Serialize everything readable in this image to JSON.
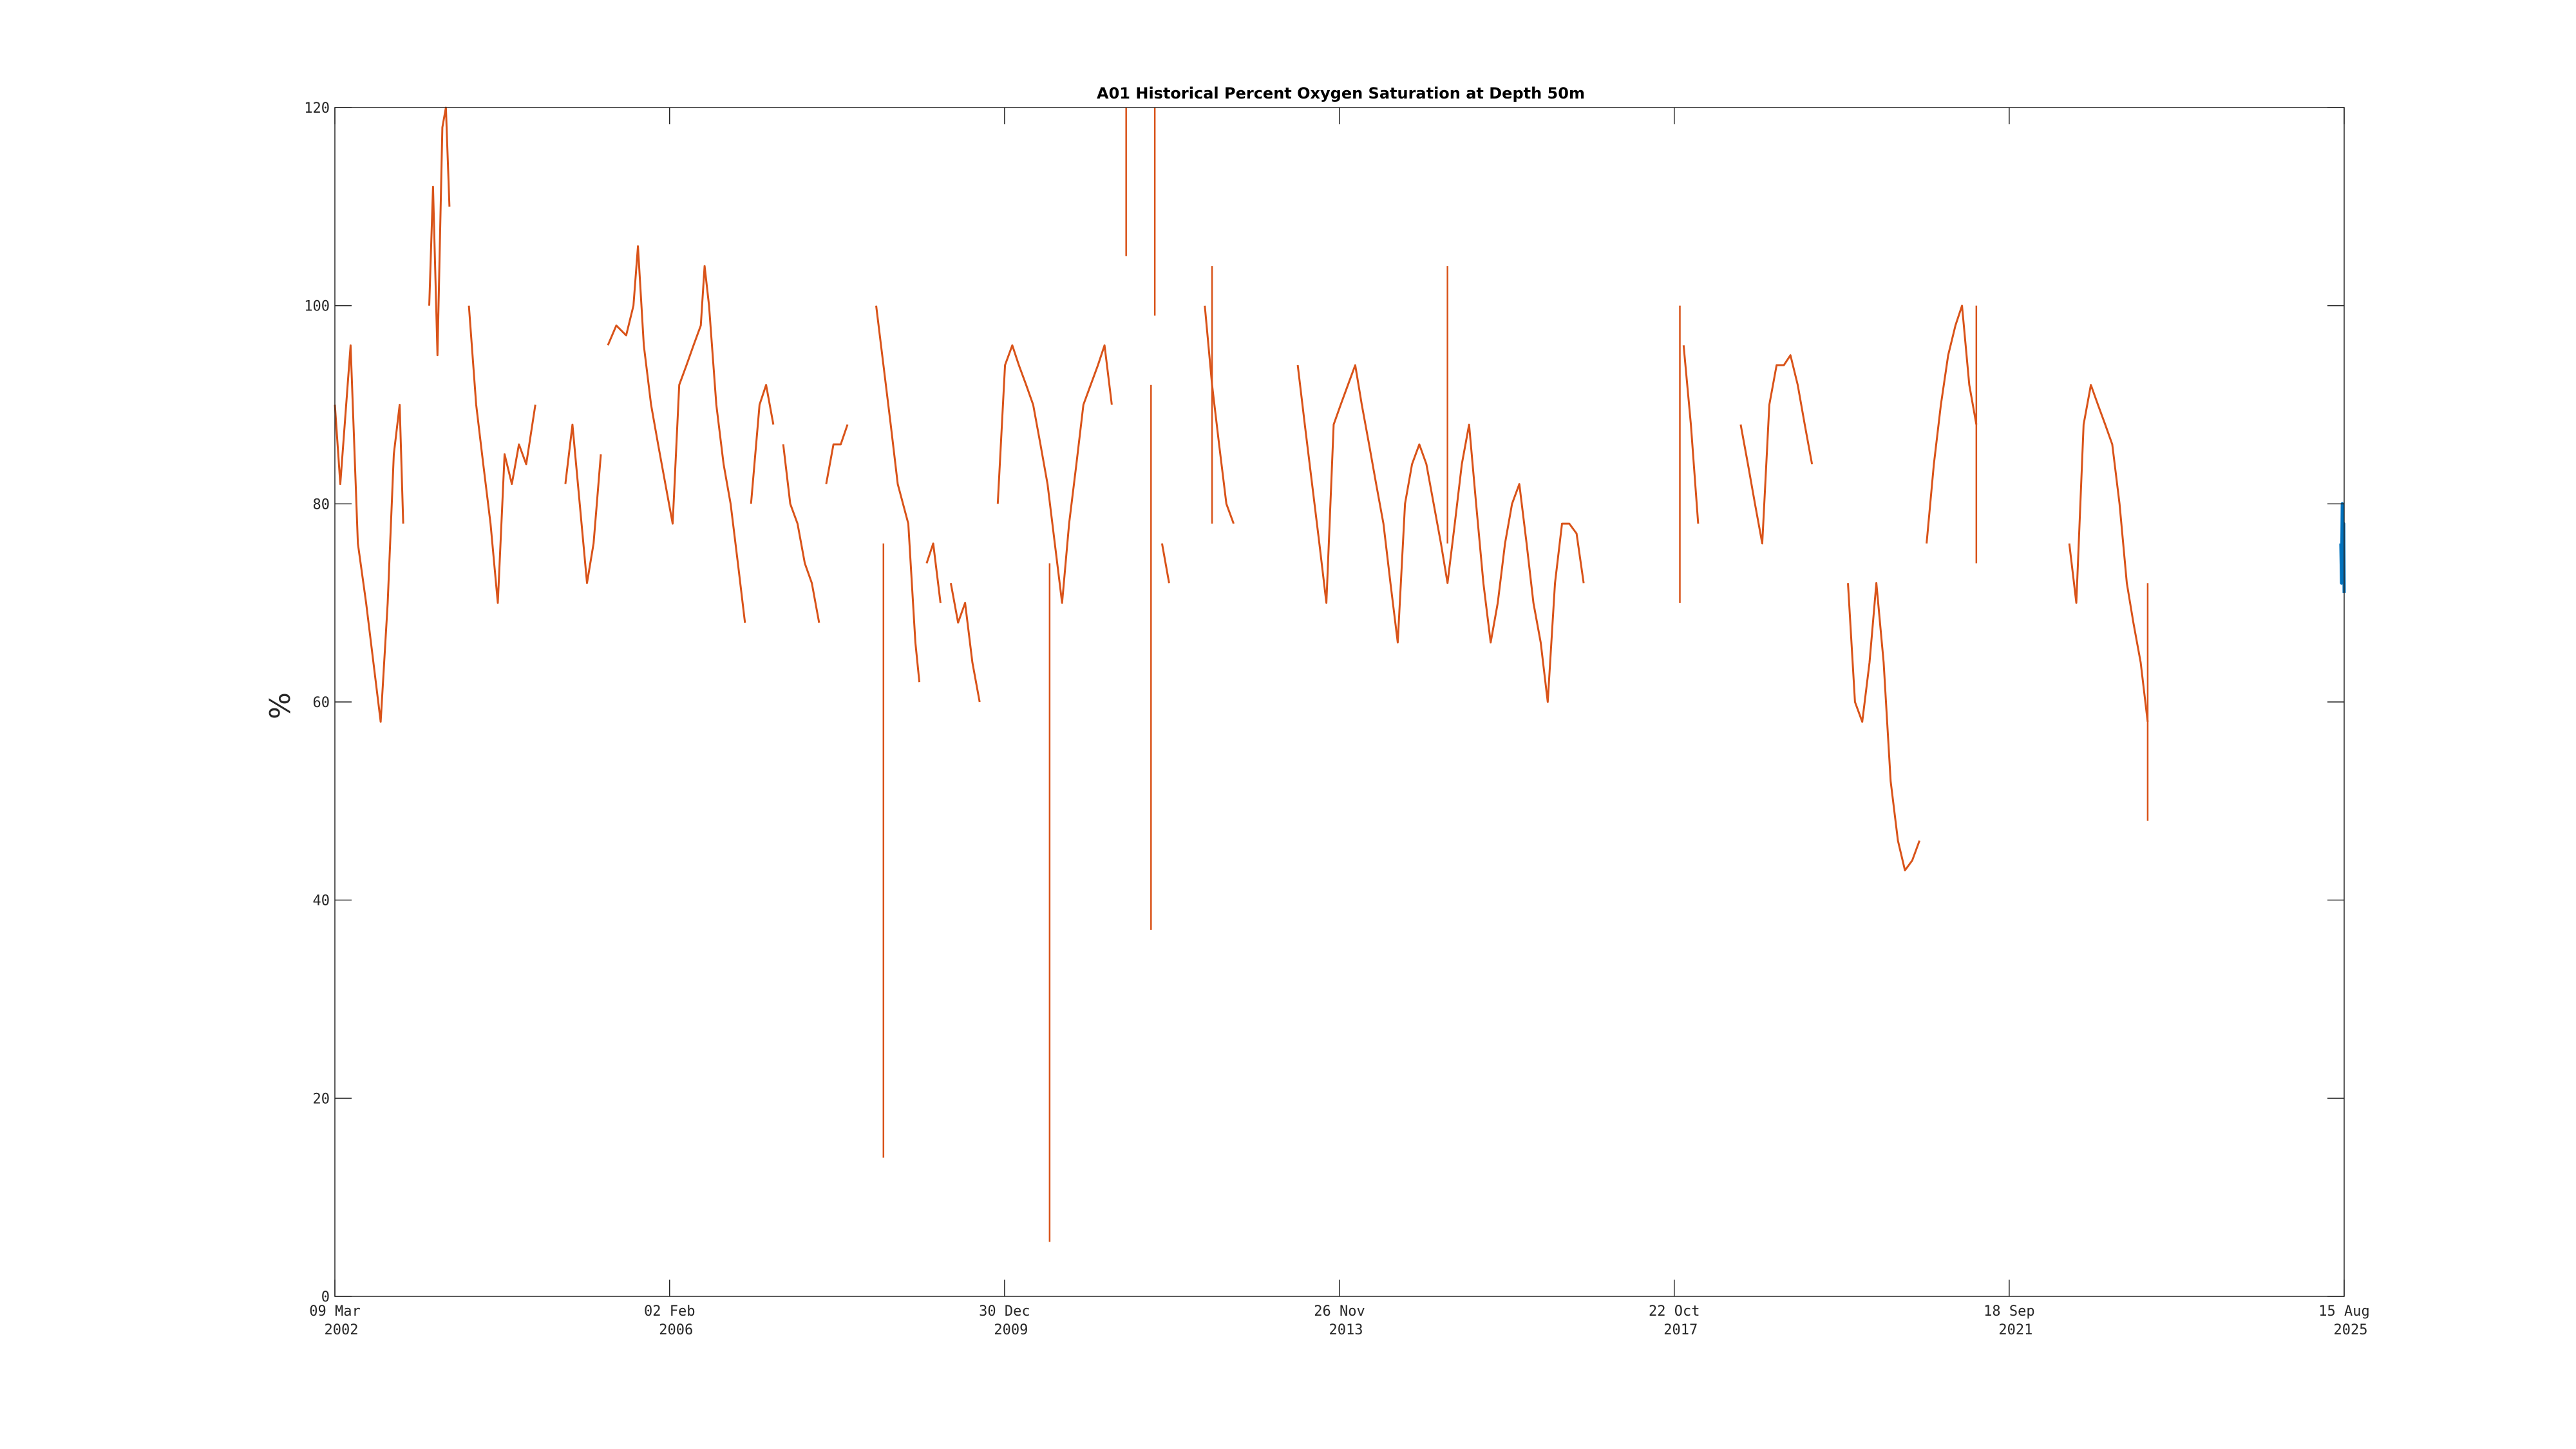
{
  "chart_data": {
    "type": "line",
    "title": "A01 Historical Percent Oxygen Saturation at Depth 50m",
    "xlabel": "",
    "ylabel": "%",
    "ylim": [
      0,
      120
    ],
    "yticks": [
      "0",
      "20",
      "40",
      "60",
      "80",
      "100",
      "120"
    ],
    "xlim": [
      "2002-03-09",
      "2025-08-15"
    ],
    "xticks": [
      {
        "date": "2002-03-09",
        "line1": "09 Mar",
        "line2": "2002"
      },
      {
        "date": "2006-02-02",
        "line1": "02 Feb",
        "line2": "2006"
      },
      {
        "date": "2009-12-30",
        "line1": "30 Dec",
        "line2": "2009"
      },
      {
        "date": "2013-11-26",
        "line1": "26 Nov",
        "line2": "2013"
      },
      {
        "date": "2017-10-22",
        "line1": "22 Oct",
        "line2": "2017"
      },
      {
        "date": "2021-09-18",
        "line1": "18 Sep",
        "line2": "2021"
      },
      {
        "date": "2025-08-15",
        "line1": "15 Aug",
        "line2": "2025"
      }
    ],
    "grid": false,
    "colors": {
      "historical": "#D95319",
      "recent": "#0072BD",
      "axis": "#262626"
    },
    "series": [
      {
        "color": "#D95319",
        "segments": [
          [
            [
              "2002-03-09",
              90
            ],
            [
              "2002-04-01",
              82
            ],
            [
              "2002-05-15",
              96
            ],
            [
              "2002-06-15",
              76
            ],
            [
              "2002-07-20",
              70
            ],
            [
              "2002-08-20",
              64
            ],
            [
              "2002-09-20",
              58
            ],
            [
              "2002-10-20",
              70
            ],
            [
              "2002-11-15",
              85
            ],
            [
              "2002-12-10",
              90
            ],
            [
              "2002-12-25",
              78
            ]
          ],
          [
            [
              "2003-04-15",
              100
            ],
            [
              "2003-05-01",
              112
            ],
            [
              "2003-05-20",
              95
            ],
            [
              "2003-06-10",
              118
            ],
            [
              "2003-06-25",
              120
            ],
            [
              "2003-07-10",
              110
            ]
          ],
          [
            [
              "2003-10-01",
              100
            ],
            [
              "2003-11-01",
              90
            ],
            [
              "2003-12-01",
              84
            ],
            [
              "2004-01-01",
              78
            ],
            [
              "2004-02-01",
              70
            ],
            [
              "2004-03-01",
              85
            ],
            [
              "2004-04-01",
              82
            ],
            [
              "2004-05-01",
              86
            ],
            [
              "2004-06-01",
              84
            ],
            [
              "2004-07-10",
              90
            ]
          ],
          [
            [
              "2004-11-15",
              82
            ],
            [
              "2004-12-15",
              88
            ],
            [
              "2005-01-15",
              80
            ],
            [
              "2005-02-15",
              72
            ],
            [
              "2005-03-15",
              76
            ],
            [
              "2005-04-15",
              85
            ]
          ],
          [
            [
              "2005-05-15",
              96
            ],
            [
              "2005-06-20",
              98
            ],
            [
              "2005-08-01",
              97
            ],
            [
              "2005-09-01",
              100
            ],
            [
              "2005-09-20",
              106
            ],
            [
              "2005-10-15",
              96
            ],
            [
              "2005-11-15",
              90
            ],
            [
              "2005-12-15",
              86
            ],
            [
              "2006-01-15",
              82
            ],
            [
              "2006-02-15",
              78
            ],
            [
              "2006-03-15",
              92
            ],
            [
              "2006-04-15",
              94
            ],
            [
              "2006-05-15",
              96
            ],
            [
              "2006-06-15",
              98
            ],
            [
              "2006-07-01",
              104
            ],
            [
              "2006-07-20",
              100
            ],
            [
              "2006-08-20",
              90
            ],
            [
              "2006-09-20",
              84
            ],
            [
              "2006-10-20",
              80
            ],
            [
              "2006-11-20",
              74
            ],
            [
              "2006-12-20",
              68
            ]
          ],
          [
            [
              "2007-01-15",
              80
            ],
            [
              "2007-02-20",
              90
            ],
            [
              "2007-03-20",
              92
            ],
            [
              "2007-04-20",
              88
            ]
          ],
          [
            [
              "2007-06-01",
              86
            ],
            [
              "2007-07-01",
              80
            ],
            [
              "2007-08-01",
              78
            ],
            [
              "2007-09-01",
              74
            ],
            [
              "2007-10-01",
              72
            ],
            [
              "2007-11-01",
              68
            ]
          ],
          [
            [
              "2007-12-01",
              82
            ],
            [
              "2008-01-01",
              86
            ],
            [
              "2008-02-01",
              86
            ],
            [
              "2008-03-01",
              88
            ]
          ],
          [
            [
              "2008-07-01",
              100
            ],
            [
              "2008-08-01",
              94
            ],
            [
              "2008-09-01",
              88
            ],
            [
              "2008-10-01",
              82
            ],
            [
              "2008-11-15",
              78
            ],
            [
              "2008-12-15",
              66
            ],
            [
              "2009-01-01",
              62
            ]
          ],
          [
            [
              "2009-02-01",
              74
            ],
            [
              "2009-03-01",
              76
            ],
            [
              "2009-04-01",
              70
            ]
          ],
          [
            [
              "2009-05-15",
              72
            ],
            [
              "2009-06-15",
              68
            ],
            [
              "2009-07-15",
              70
            ],
            [
              "2009-08-15",
              64
            ],
            [
              "2009-09-15",
              60
            ]
          ],
          [
            [
              "2009-12-01",
              80
            ],
            [
              "2010-01-01",
              94
            ],
            [
              "2010-02-01",
              96
            ],
            [
              "2010-03-01",
              94
            ],
            [
              "2010-04-01",
              92
            ],
            [
              "2010-05-01",
              90
            ],
            [
              "2010-06-01",
              86
            ],
            [
              "2010-07-01",
              82
            ],
            [
              "2010-08-01",
              76
            ],
            [
              "2010-09-01",
              70
            ],
            [
              "2010-10-01",
              78
            ],
            [
              "2010-11-01",
              84
            ],
            [
              "2010-12-01",
              90
            ],
            [
              "2011-01-01",
              92
            ],
            [
              "2011-02-01",
              94
            ],
            [
              "2011-03-01",
              96
            ],
            [
              "2011-04-01",
              90
            ]
          ],
          [
            [
              "2011-11-01",
              76
            ],
            [
              "2011-12-01",
              72
            ]
          ],
          [
            [
              "2012-05-01",
              100
            ],
            [
              "2012-06-01",
              92
            ],
            [
              "2012-07-01",
              86
            ],
            [
              "2012-08-01",
              80
            ],
            [
              "2012-09-01",
              78
            ]
          ],
          [
            [
              "2013-06-01",
              94
            ],
            [
              "2013-07-01",
              88
            ],
            [
              "2013-08-01",
              82
            ],
            [
              "2013-09-01",
              76
            ],
            [
              "2013-10-01",
              70
            ],
            [
              "2013-11-01",
              88
            ],
            [
              "2013-12-01",
              90
            ],
            [
              "2014-01-01",
              92
            ],
            [
              "2014-02-01",
              94
            ],
            [
              "2014-03-01",
              90
            ],
            [
              "2014-04-01",
              86
            ],
            [
              "2014-05-01",
              82
            ],
            [
              "2014-06-01",
              78
            ],
            [
              "2014-07-01",
              72
            ],
            [
              "2014-08-01",
              66
            ],
            [
              "2014-09-01",
              80
            ],
            [
              "2014-10-01",
              84
            ],
            [
              "2014-11-01",
              86
            ],
            [
              "2014-12-01",
              84
            ],
            [
              "2015-01-01",
              80
            ],
            [
              "2015-02-01",
              76
            ],
            [
              "2015-03-01",
              72
            ],
            [
              "2015-04-01",
              78
            ],
            [
              "2015-05-01",
              84
            ],
            [
              "2015-06-01",
              88
            ],
            [
              "2015-07-01",
              80
            ],
            [
              "2015-08-01",
              72
            ],
            [
              "2015-09-01",
              66
            ],
            [
              "2015-10-01",
              70
            ],
            [
              "2015-11-01",
              76
            ],
            [
              "2015-12-01",
              80
            ],
            [
              "2016-01-01",
              82
            ],
            [
              "2016-02-01",
              76
            ],
            [
              "2016-03-01",
              70
            ],
            [
              "2016-04-01",
              66
            ],
            [
              "2016-05-01",
              60
            ],
            [
              "2016-06-01",
              72
            ],
            [
              "2016-07-01",
              78
            ],
            [
              "2016-08-01",
              78
            ],
            [
              "2016-09-01",
              77
            ],
            [
              "2016-10-01",
              72
            ]
          ],
          [
            [
              "2017-12-01",
              96
            ],
            [
              "2018-01-01",
              88
            ],
            [
              "2018-02-01",
              78
            ]
          ],
          [
            [
              "2018-08-01",
              88
            ],
            [
              "2018-09-01",
              84
            ],
            [
              "2018-10-01",
              80
            ],
            [
              "2018-11-01",
              76
            ],
            [
              "2018-12-01",
              90
            ],
            [
              "2019-01-01",
              94
            ],
            [
              "2019-02-01",
              94
            ],
            [
              "2019-03-01",
              95
            ],
            [
              "2019-04-01",
              92
            ],
            [
              "2019-05-01",
              88
            ],
            [
              "2019-06-01",
              84
            ]
          ],
          [
            [
              "2019-11-01",
              72
            ],
            [
              "2019-12-01",
              60
            ],
            [
              "2020-01-01",
              58
            ],
            [
              "2020-02-01",
              64
            ],
            [
              "2020-03-01",
              72
            ],
            [
              "2020-04-01",
              64
            ],
            [
              "2020-05-01",
              52
            ],
            [
              "2020-06-01",
              46
            ],
            [
              "2020-07-01",
              43
            ],
            [
              "2020-08-01",
              44
            ],
            [
              "2020-09-01",
              46
            ]
          ],
          [
            [
              "2020-10-01",
              76
            ],
            [
              "2020-11-01",
              84
            ],
            [
              "2020-12-01",
              90
            ],
            [
              "2021-01-01",
              95
            ],
            [
              "2021-02-01",
              98
            ],
            [
              "2021-03-01",
              100
            ],
            [
              "2021-04-01",
              92
            ],
            [
              "2021-05-01",
              88
            ]
          ],
          [
            [
              "2022-06-01",
              76
            ],
            [
              "2022-07-01",
              70
            ],
            [
              "2022-08-01",
              88
            ],
            [
              "2022-09-01",
              92
            ],
            [
              "2022-10-01",
              90
            ],
            [
              "2022-11-01",
              88
            ],
            [
              "2022-12-01",
              86
            ],
            [
              "2023-01-01",
              80
            ],
            [
              "2023-02-01",
              72
            ],
            [
              "2023-03-01",
              68
            ],
            [
              "2023-04-01",
              64
            ],
            [
              "2023-05-01",
              58
            ]
          ]
        ]
      },
      {
        "color": "#0072BD",
        "segments": [
          [
            [
              "2025-08-01",
              76
            ],
            [
              "2025-08-04",
              72
            ],
            [
              "2025-08-07",
              80
            ],
            [
              "2025-08-10",
              74
            ],
            [
              "2025-08-13",
              78
            ],
            [
              "2025-08-15",
              71
            ]
          ]
        ]
      }
    ],
    "spikes": [
      [
        "2008-08-01",
        76,
        14
      ],
      [
        "2010-07-10",
        74,
        5.5
      ],
      [
        "2011-06-01",
        120,
        105
      ],
      [
        "2011-10-01",
        120,
        99
      ],
      [
        "2011-09-15",
        92,
        37
      ],
      [
        "2012-06-01",
        104,
        78
      ],
      [
        "2015-03-01",
        104,
        76
      ],
      [
        "2017-11-15",
        100,
        70
      ],
      [
        "2021-05-01",
        100,
        74
      ],
      [
        "2023-05-01",
        72,
        48
      ]
    ]
  }
}
